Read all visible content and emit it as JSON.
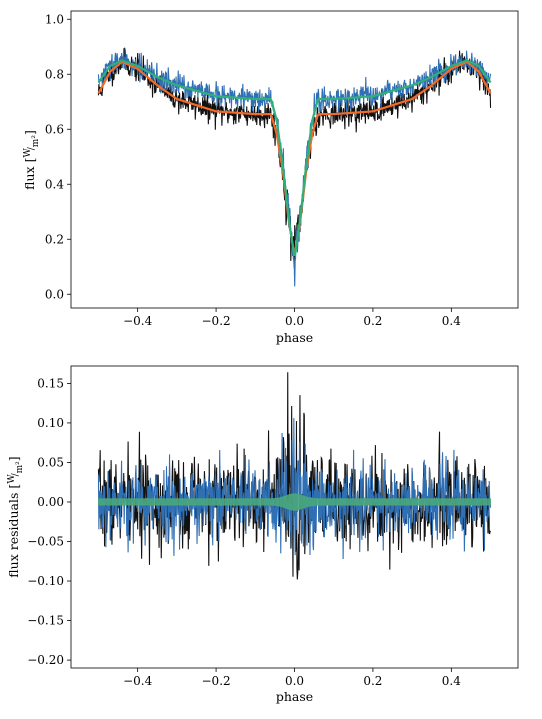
{
  "chart_data": [
    {
      "type": "line",
      "xlabel": "phase",
      "ylabel": "flux [W/m²]",
      "ylabel_main": "flux",
      "ylabel_unit_num": "W",
      "ylabel_unit_den": "m²",
      "xlim": [
        -0.57,
        0.57
      ],
      "ylim": [
        -0.05,
        1.03
      ],
      "xticks": [
        -0.4,
        -0.2,
        0.0,
        0.2,
        0.4
      ],
      "xtick_labels": [
        "−0.4",
        "−0.2",
        "0.0",
        "0.2",
        "0.4"
      ],
      "yticks": [
        0.0,
        0.2,
        0.4,
        0.6,
        0.8,
        1.0
      ],
      "ytick_labels": [
        "0.0",
        "0.2",
        "0.4",
        "0.6",
        "0.8",
        "1.0"
      ],
      "grid": false,
      "series": [
        {
          "role": "observations (black)",
          "color": "#111111",
          "noise": 0.04
        },
        {
          "role": "observations (blue)",
          "color": "#2f6fb4",
          "noise": 0.035
        },
        {
          "role": "model (orange)",
          "color": "#f06a2a"
        },
        {
          "role": "model (green)",
          "color": "#2fb07a"
        }
      ],
      "model_orange": {
        "x": [
          -0.5,
          -0.47,
          -0.44,
          -0.4,
          -0.35,
          -0.3,
          -0.2,
          -0.1,
          -0.06,
          -0.045,
          -0.03,
          -0.015,
          0.0,
          0.015,
          0.03,
          0.045,
          0.06,
          0.1,
          0.2,
          0.3,
          0.35,
          0.4,
          0.44,
          0.47,
          0.5
        ],
        "y": [
          0.73,
          0.81,
          0.845,
          0.82,
          0.76,
          0.71,
          0.665,
          0.655,
          0.655,
          0.58,
          0.45,
          0.27,
          0.14,
          0.27,
          0.45,
          0.58,
          0.655,
          0.655,
          0.665,
          0.71,
          0.76,
          0.82,
          0.845,
          0.81,
          0.73
        ]
      },
      "model_green": {
        "x": [
          -0.5,
          -0.47,
          -0.44,
          -0.4,
          -0.35,
          -0.3,
          -0.2,
          -0.1,
          -0.06,
          -0.045,
          -0.03,
          -0.015,
          0.0,
          0.015,
          0.03,
          0.045,
          0.06,
          0.1,
          0.2,
          0.3,
          0.35,
          0.4,
          0.44,
          0.47,
          0.5
        ],
        "y": [
          0.77,
          0.83,
          0.85,
          0.83,
          0.79,
          0.76,
          0.72,
          0.71,
          0.71,
          0.63,
          0.47,
          0.28,
          0.13,
          0.28,
          0.47,
          0.63,
          0.71,
          0.71,
          0.72,
          0.76,
          0.79,
          0.83,
          0.85,
          0.83,
          0.77
        ]
      }
    },
    {
      "type": "line",
      "xlabel": "phase",
      "ylabel": "flux residuals [W/m²]",
      "ylabel_main": "flux residuals",
      "ylabel_unit_num": "W",
      "ylabel_unit_den": "m²",
      "xlim": [
        -0.57,
        0.57
      ],
      "ylim": [
        -0.21,
        0.172
      ],
      "xticks": [
        -0.4,
        -0.2,
        0.0,
        0.2,
        0.4
      ],
      "xtick_labels": [
        "−0.4",
        "−0.2",
        "0.0",
        "0.2",
        "0.4"
      ],
      "yticks": [
        -0.2,
        -0.15,
        -0.1,
        -0.05,
        0.0,
        0.05,
        0.1,
        0.15
      ],
      "ytick_labels": [
        "−0.20",
        "−0.15",
        "−0.10",
        "−0.05",
        "0.00",
        "0.05",
        "0.10",
        "0.15"
      ],
      "grid": false,
      "series": [
        {
          "role": "residuals (black)",
          "color": "#111111",
          "noise": 0.038
        },
        {
          "role": "residuals (blue)",
          "color": "#2f6fb4",
          "noise": 0.032
        },
        {
          "role": "residual band (green)",
          "color": "#4aa77c",
          "halfwidth": 0.004
        }
      ]
    }
  ]
}
